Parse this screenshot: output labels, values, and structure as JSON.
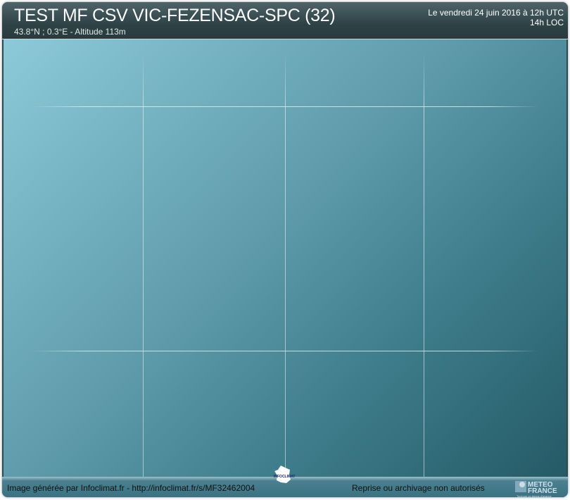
{
  "header": {
    "title": "TEST MF CSV VIC-FEZENSAC-SPC (32)",
    "subtitle": "43.8°N ; 0.3°E - Altitude 113m",
    "date_utc": "Le vendredi 24 juin 2016 à 12h UTC",
    "date_local": "14h LOC"
  },
  "footer": {
    "generated": "Image générée par Infoclimat.fr - http://infoclimat.fr/s/MF32462004",
    "rights": "Reprise ou archivage non autorisés",
    "infoclimat_logo_text": "INFOCLIMAT",
    "meteofrance_logo": {
      "line1": "METEO",
      "line2": "FRANCE",
      "tagline": "Toujours un temps d'avance"
    }
  },
  "colors": {
    "header": "#2f4347",
    "plot_top": "#8ccad8",
    "plot_bottom": "#255a66"
  }
}
